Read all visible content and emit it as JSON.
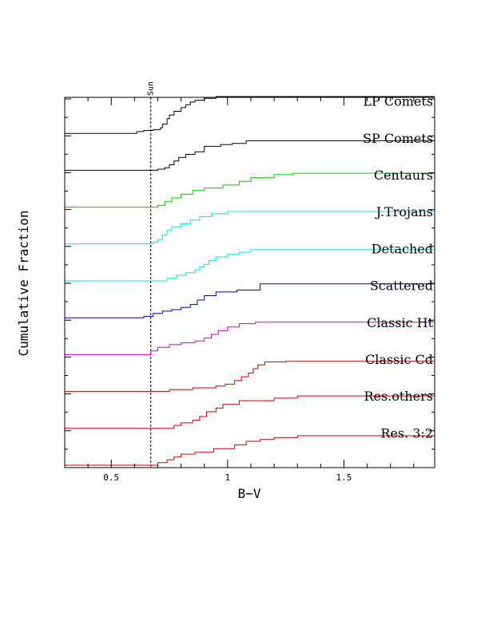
{
  "chart_data": {
    "type": "line",
    "xlabel": "B−V",
    "ylabel": "Cumulative Fraction",
    "xlim": [
      0.3,
      1.89
    ],
    "xticks": [
      0.5,
      1,
      1.5
    ],
    "xtick_labels": [
      "0.5",
      "1",
      "1.5"
    ],
    "grid": false,
    "legend": "labels at right end of each curve",
    "reference_line": {
      "x": 0.67,
      "label": "Sun",
      "style": "dashed"
    },
    "offset_step": 1,
    "series": [
      {
        "name": "LP Comets",
        "color": "#000000",
        "offset": 10,
        "points": [
          [
            0.3,
            0
          ],
          [
            0.6,
            0
          ],
          [
            0.61,
            0.05
          ],
          [
            0.64,
            0.08
          ],
          [
            0.68,
            0.1
          ],
          [
            0.71,
            0.15
          ],
          [
            0.72,
            0.25
          ],
          [
            0.74,
            0.4
          ],
          [
            0.75,
            0.5
          ],
          [
            0.77,
            0.6
          ],
          [
            0.8,
            0.7
          ],
          [
            0.82,
            0.78
          ],
          [
            0.84,
            0.85
          ],
          [
            0.86,
            0.9
          ],
          [
            0.9,
            0.95
          ],
          [
            0.95,
            1.0
          ],
          [
            1.89,
            1.0
          ]
        ]
      },
      {
        "name": "SP Comets",
        "color": "#000000",
        "offset": 9,
        "points": [
          [
            0.3,
            0
          ],
          [
            0.67,
            0
          ],
          [
            0.7,
            0.03
          ],
          [
            0.73,
            0.07
          ],
          [
            0.75,
            0.15
          ],
          [
            0.77,
            0.25
          ],
          [
            0.79,
            0.35
          ],
          [
            0.82,
            0.43
          ],
          [
            0.86,
            0.5
          ],
          [
            0.9,
            0.65
          ],
          [
            0.97,
            0.7
          ],
          [
            1.02,
            0.73
          ],
          [
            1.08,
            0.8
          ],
          [
            1.89,
            0.8
          ]
        ]
      },
      {
        "name": "Centaurs",
        "color": "#00cc00",
        "offset": 8,
        "points": [
          [
            0.3,
            0
          ],
          [
            0.66,
            0
          ],
          [
            0.7,
            0.05
          ],
          [
            0.73,
            0.15
          ],
          [
            0.76,
            0.25
          ],
          [
            0.8,
            0.35
          ],
          [
            0.85,
            0.45
          ],
          [
            0.9,
            0.52
          ],
          [
            0.98,
            0.6
          ],
          [
            1.05,
            0.7
          ],
          [
            1.1,
            0.8
          ],
          [
            1.2,
            0.88
          ],
          [
            1.28,
            0.92
          ],
          [
            1.89,
            0.92
          ]
        ]
      },
      {
        "name": "J.Trojans",
        "color": "#00e5e5",
        "offset": 7,
        "points": [
          [
            0.3,
            0
          ],
          [
            0.66,
            0
          ],
          [
            0.68,
            0.05
          ],
          [
            0.7,
            0.12
          ],
          [
            0.72,
            0.25
          ],
          [
            0.74,
            0.37
          ],
          [
            0.76,
            0.47
          ],
          [
            0.8,
            0.55
          ],
          [
            0.84,
            0.65
          ],
          [
            0.88,
            0.74
          ],
          [
            0.93,
            0.82
          ],
          [
            1.0,
            0.88
          ],
          [
            1.89,
            0.88
          ]
        ]
      },
      {
        "name": "Detached",
        "color": "#00e5e5",
        "offset": 6,
        "points": [
          [
            0.3,
            0
          ],
          [
            0.7,
            0
          ],
          [
            0.74,
            0.07
          ],
          [
            0.78,
            0.15
          ],
          [
            0.82,
            0.22
          ],
          [
            0.86,
            0.3
          ],
          [
            0.88,
            0.38
          ],
          [
            0.9,
            0.45
          ],
          [
            0.92,
            0.55
          ],
          [
            0.95,
            0.65
          ],
          [
            1.0,
            0.72
          ],
          [
            1.05,
            0.78
          ],
          [
            1.1,
            0.85
          ],
          [
            1.89,
            0.85
          ]
        ]
      },
      {
        "name": "Scattered",
        "color": "#0000cc",
        "offset": 5,
        "points": [
          [
            0.3,
            0
          ],
          [
            0.6,
            0
          ],
          [
            0.64,
            0.04
          ],
          [
            0.68,
            0.12
          ],
          [
            0.72,
            0.18
          ],
          [
            0.76,
            0.22
          ],
          [
            0.8,
            0.28
          ],
          [
            0.84,
            0.36
          ],
          [
            0.87,
            0.48
          ],
          [
            0.9,
            0.6
          ],
          [
            0.95,
            0.7
          ],
          [
            1.04,
            0.75
          ],
          [
            1.14,
            0.92
          ],
          [
            1.89,
            0.92
          ]
        ]
      },
      {
        "name": "Classic Ht",
        "color": "#cc00cc",
        "offset": 4,
        "points": [
          [
            0.3,
            0
          ],
          [
            0.63,
            0
          ],
          [
            0.67,
            0.1
          ],
          [
            0.7,
            0.2
          ],
          [
            0.75,
            0.27
          ],
          [
            0.8,
            0.32
          ],
          [
            0.86,
            0.37
          ],
          [
            0.9,
            0.45
          ],
          [
            0.93,
            0.55
          ],
          [
            0.96,
            0.65
          ],
          [
            1.0,
            0.75
          ],
          [
            1.05,
            0.84
          ],
          [
            1.12,
            0.88
          ],
          [
            1.89,
            0.92
          ]
        ]
      },
      {
        "name": "Classic Cd",
        "color": "#cc0000",
        "offset": 3,
        "points": [
          [
            0.3,
            0
          ],
          [
            0.7,
            0
          ],
          [
            0.75,
            0.05
          ],
          [
            0.85,
            0.1
          ],
          [
            0.95,
            0.15
          ],
          [
            0.99,
            0.2
          ],
          [
            1.03,
            0.3
          ],
          [
            1.06,
            0.4
          ],
          [
            1.09,
            0.5
          ],
          [
            1.11,
            0.62
          ],
          [
            1.13,
            0.72
          ],
          [
            1.16,
            0.8
          ],
          [
            1.25,
            0.82
          ],
          [
            1.89,
            0.82
          ]
        ]
      },
      {
        "name": "Res.others",
        "color": "#cc0000",
        "offset": 2,
        "points": [
          [
            0.3,
            0
          ],
          [
            0.7,
            0
          ],
          [
            0.77,
            0.08
          ],
          [
            0.8,
            0.15
          ],
          [
            0.85,
            0.22
          ],
          [
            0.88,
            0.32
          ],
          [
            0.91,
            0.45
          ],
          [
            0.95,
            0.55
          ],
          [
            0.98,
            0.65
          ],
          [
            1.05,
            0.75
          ],
          [
            1.2,
            0.82
          ],
          [
            1.3,
            0.88
          ],
          [
            1.89,
            0.9
          ]
        ]
      },
      {
        "name": "Res. 3:2",
        "color": "#cc0000",
        "offset": 1,
        "points": [
          [
            0.3,
            0
          ],
          [
            0.66,
            0
          ],
          [
            0.7,
            0.07
          ],
          [
            0.74,
            0.15
          ],
          [
            0.77,
            0.22
          ],
          [
            0.8,
            0.3
          ],
          [
            0.86,
            0.35
          ],
          [
            0.94,
            0.45
          ],
          [
            1.03,
            0.55
          ],
          [
            1.08,
            0.65
          ],
          [
            1.14,
            0.7
          ],
          [
            1.2,
            0.75
          ],
          [
            1.3,
            0.8
          ],
          [
            1.89,
            0.8
          ]
        ]
      }
    ]
  }
}
